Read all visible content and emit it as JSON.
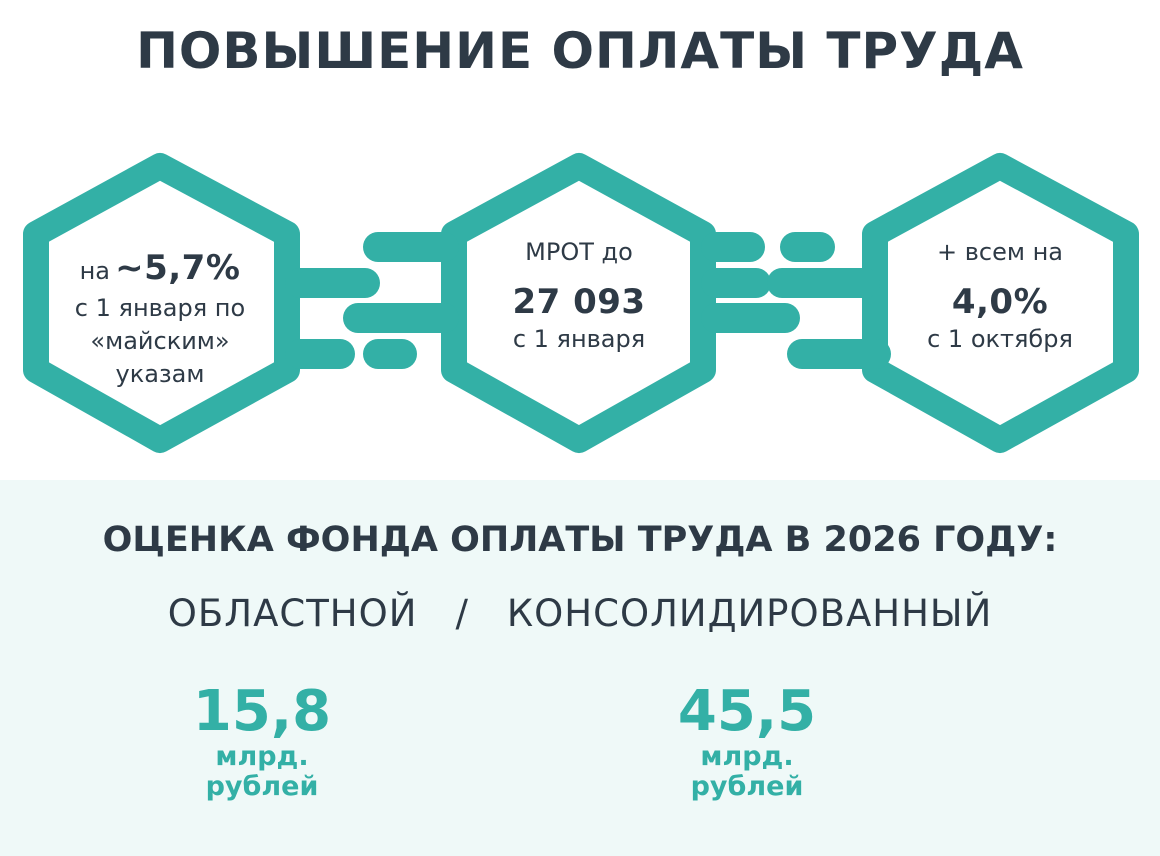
{
  "header": {
    "title": "ПОВЫШЕНИЕ ОПЛАТЫ ТРУДА"
  },
  "colors": {
    "accent": "#33b0a6",
    "text": "#2e3a46",
    "panel": "#eff9f8"
  },
  "hexagons": [
    {
      "prefix": "на",
      "value": "~5,7%",
      "lines": [
        "с 1 января по",
        "«майским»",
        "указам"
      ]
    },
    {
      "top": "МРОТ до",
      "value": "27 093",
      "bottom": "с 1 января"
    },
    {
      "top": "+ всем на",
      "value": "4,0%",
      "bottom": "с 1 октября"
    }
  ],
  "fund": {
    "title": "ОЦЕНКА ФОНДА ОПЛАТЫ ТРУДА В 2026 ГОДУ:",
    "type_left": "ОБЛАСТНОЙ",
    "separator": "/",
    "type_right": "КОНСОЛИДИРОВАННЫЙ",
    "left": {
      "value": "15,8",
      "unit_line1": "млрд.",
      "unit_line2": "рублей"
    },
    "right": {
      "value": "45,5",
      "unit_line1": "млрд.",
      "unit_line2": "рублей"
    }
  }
}
